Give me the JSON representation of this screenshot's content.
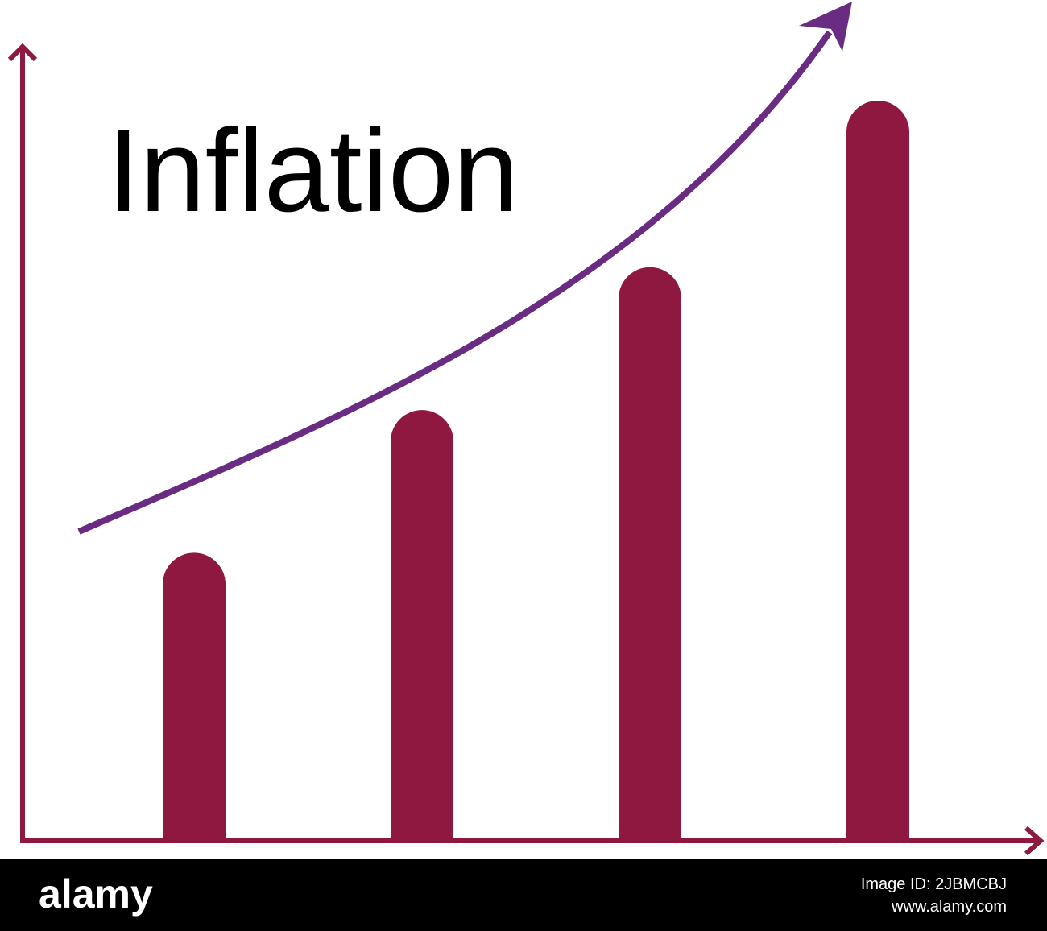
{
  "chart_data": {
    "type": "bar",
    "title": "Inflation",
    "categories": [
      null,
      null,
      null,
      null
    ],
    "values": [
      36,
      54,
      72,
      93
    ],
    "color": "#8e1840",
    "ylim": [
      0,
      100
    ]
  },
  "footer": {
    "brand": "alamy",
    "image_id": "Image ID: 2JBMCBJ",
    "url": "www.alamy.com"
  }
}
